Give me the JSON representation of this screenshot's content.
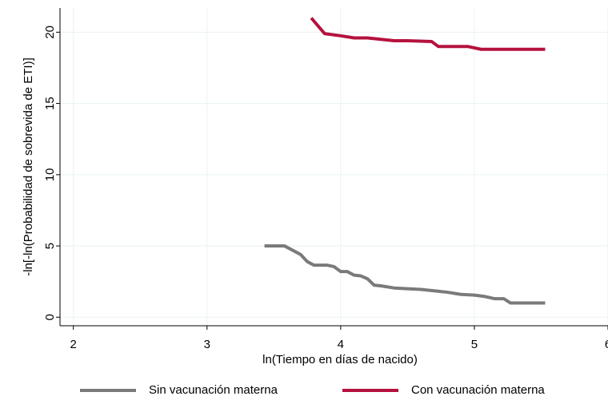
{
  "chart_data": {
    "type": "line",
    "x_label": "ln(Tiempo en días de nacido)",
    "y_label": "-ln[-ln(Probabilidad de sobrevida de ETI)]",
    "xlim": [
      1.9,
      6
    ],
    "xticks": [
      2,
      3,
      4,
      5,
      6
    ],
    "ylim": [
      -0.6,
      21.7
    ],
    "yticks": [
      0,
      5,
      10,
      15,
      20
    ],
    "grid": true,
    "legend": "bottom",
    "series": [
      {
        "name": "Sin vacunación materna",
        "color": "#7a7a7a",
        "x": [
          3.43,
          3.58,
          3.7,
          3.75,
          3.8,
          3.9,
          3.95,
          4.0,
          4.05,
          4.1,
          4.15,
          4.2,
          4.25,
          4.3,
          4.4,
          4.5,
          4.6,
          4.7,
          4.8,
          4.9,
          5.0,
          5.08,
          5.15,
          5.22,
          5.27,
          5.53
        ],
        "values": [
          5.0,
          5.0,
          4.4,
          3.9,
          3.65,
          3.65,
          3.55,
          3.2,
          3.2,
          2.95,
          2.9,
          2.7,
          2.25,
          2.2,
          2.05,
          2.0,
          1.95,
          1.85,
          1.75,
          1.6,
          1.55,
          1.45,
          1.3,
          1.3,
          1.0,
          1.0
        ]
      },
      {
        "name": "Con vacunación materna",
        "color": "#b5123e",
        "x": [
          3.78,
          3.88,
          4.0,
          4.1,
          4.2,
          4.4,
          4.5,
          4.68,
          4.73,
          4.95,
          5.05,
          5.53
        ],
        "values": [
          21.0,
          19.9,
          19.75,
          19.6,
          19.6,
          19.4,
          19.4,
          19.35,
          19.0,
          19.0,
          18.8,
          18.8
        ]
      }
    ]
  }
}
